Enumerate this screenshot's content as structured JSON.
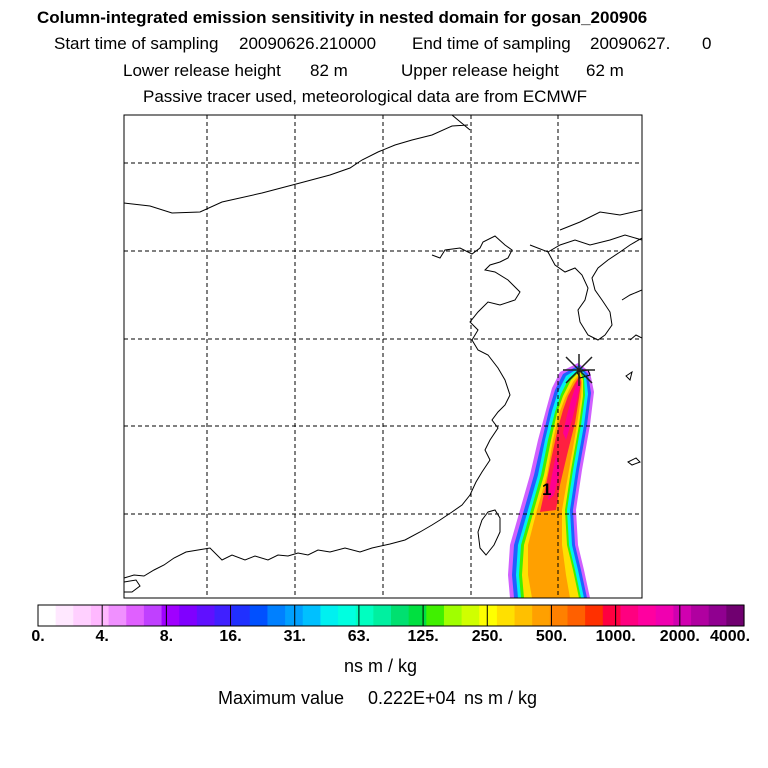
{
  "header": {
    "title": "Column-integrated emission sensitivity in nested domain for gosan_200906",
    "start_label": "Start time of sampling",
    "start_value": "20090626.210000",
    "end_label": "End time of sampling",
    "end_value": "20090627.",
    "end_hour": "0",
    "lower_label": "Lower release height",
    "lower_value": "82 m",
    "upper_label": "Upper release height",
    "upper_value": "62 m",
    "tracer_note": "Passive tracer used, meteorological data are from ECMWF"
  },
  "map": {
    "marker_label": "1",
    "colors": {
      "land_line": "#000000",
      "grid_line": "#000000",
      "release_marker": "#ff8000"
    }
  },
  "colorbar": {
    "ticks": [
      "0.",
      "4.",
      "8.",
      "16.",
      "31.",
      "63.",
      "125.",
      "250.",
      "500.",
      "1000.",
      "2000.",
      "4000."
    ],
    "colors": [
      "#ffffff",
      "#ffe8ff",
      "#ffd0ff",
      "#ffb8ff",
      "#f090ff",
      "#e060ff",
      "#c040ff",
      "#a000ff",
      "#8000ff",
      "#6010ff",
      "#4020ff",
      "#2030ff",
      "#0050ff",
      "#0080ff",
      "#00a0ff",
      "#00c0ff",
      "#00f0f0",
      "#00ffe0",
      "#00ffc0",
      "#00f0a0",
      "#00e070",
      "#00e040",
      "#40f000",
      "#a0ff00",
      "#d0ff00",
      "#ffff00",
      "#ffe000",
      "#ffc000",
      "#ffa000",
      "#ff8000",
      "#ff6000",
      "#ff3000",
      "#ff0040",
      "#ff0080",
      "#ff00a0",
      "#f000b0",
      "#d000b0",
      "#b000a0",
      "#900090",
      "#700070"
    ],
    "unit": "ns m / kg",
    "max_label": "Maximum value",
    "max_value": "0.222E+04",
    "max_unit": "ns m / kg"
  }
}
